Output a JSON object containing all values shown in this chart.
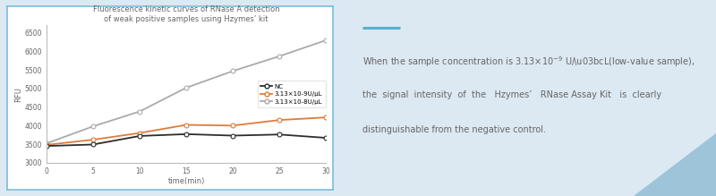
{
  "title_line1": "Fluorescence kinetic curves of RNase A detection",
  "title_line2": "of weak positive samples using Hzymes’ kit",
  "xlabel": "time(min)",
  "ylabel": "RFU",
  "xlim": [
    0,
    30
  ],
  "ylim": [
    3000,
    6700
  ],
  "yticks": [
    3000,
    3500,
    4000,
    4500,
    5000,
    5500,
    6000,
    6500
  ],
  "xticks": [
    0,
    5,
    10,
    15,
    20,
    25,
    30
  ],
  "time": [
    0,
    5,
    10,
    15,
    20,
    25,
    30
  ],
  "NC": [
    3450,
    3490,
    3720,
    3770,
    3730,
    3760,
    3670
  ],
  "low9": [
    3480,
    3620,
    3800,
    4020,
    4000,
    4150,
    4220
  ],
  "low8": [
    3520,
    3980,
    4380,
    5020,
    5470,
    5870,
    6300
  ],
  "color_NC": "#2d2d2d",
  "color_low9": "#e07b39",
  "color_low8": "#aaaaaa",
  "legend_NC": "NC",
  "legend_low9": "3.13×10-9U/μL",
  "legend_low8": "3.13×10-8U/μL",
  "bg_outer": "#dce8f2",
  "bg_chart": "#ffffff",
  "border_color": "#7bbcdb",
  "text_color": "#666666",
  "accent_color": "#5aaecc",
  "triangle_color": "#9dc4d8"
}
